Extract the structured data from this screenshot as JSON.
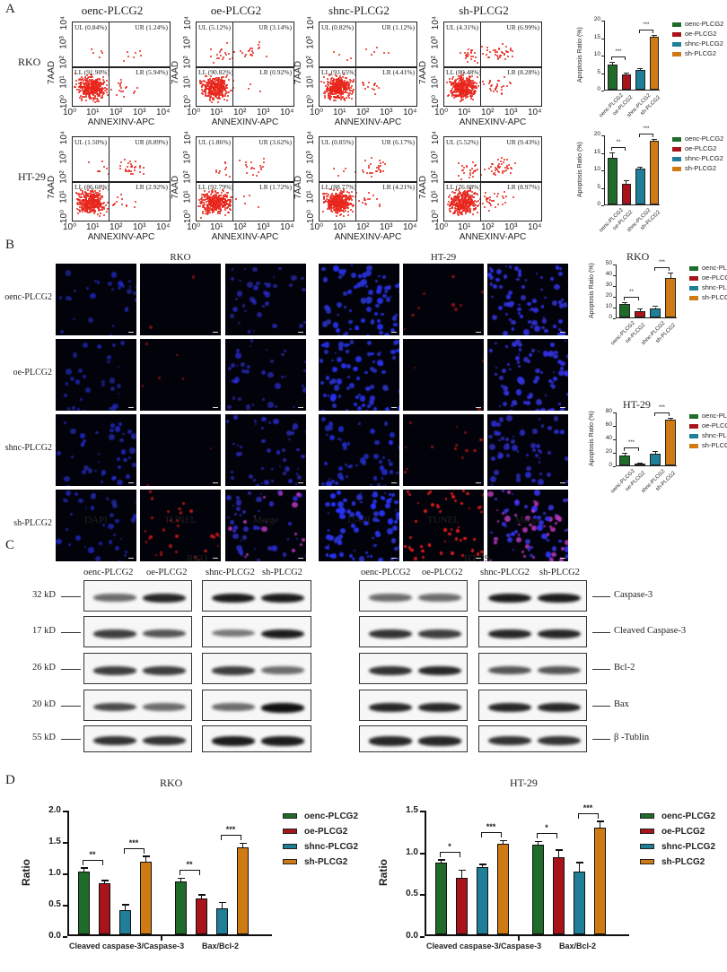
{
  "figure": {
    "panels": {
      "A": "A",
      "B": "B",
      "C": "C",
      "D": "D"
    },
    "colors": {
      "oenc": "#1f6b2a",
      "oe": "#a8141a",
      "shnc": "#1f7f99",
      "sh": "#d07a14",
      "flow_dot": "#e8261c",
      "dapi": "#1a22c8",
      "tunel": "#d01818"
    },
    "groups": [
      "oenc-PLCG2",
      "oe-PLCG2",
      "shnc-PLCG2",
      "sh-PLCG2"
    ],
    "cell_lines": [
      "RKO",
      "HT-29"
    ]
  },
  "panelA": {
    "row_labels": [
      "RKO",
      "HT-29"
    ],
    "x_axis_label": "ANNEXINV-APC",
    "y_axis_label": "7AAD",
    "axis_ticks": [
      "10⁰",
      "10¹",
      "10²",
      "10³",
      "10⁴"
    ],
    "plots": [
      [
        {
          "title": "oenc-PLCG2",
          "UL": "UL (0.84%)",
          "UR": "UR (1.24%)",
          "LL": "LL (91.98%)",
          "LR": "LR (5.94%)"
        },
        {
          "title": "oe-PLCG2",
          "UL": "UL (5.12%)",
          "UR": "UR (3.14%)",
          "LL": "LL (90.82%)",
          "LR": "LR (0.92%)"
        },
        {
          "title": "shnc-PLCG2",
          "UL": "UL (0.82%)",
          "UR": "UR (1.12%)",
          "LL": "LL (93.65%)",
          "LR": "LR (4.41%)"
        },
        {
          "title": "sh-PLCG2",
          "UL": "UL (4.31%)",
          "UR": "UR (6.99%)",
          "LL": "LL (80.48%)",
          "LR": "LR (8.28%)"
        }
      ],
      [
        {
          "title": "oenc-PLCG2",
          "UL": "UL (1.50%)",
          "UR": "UR (8.89%)",
          "LL": "LL (86.68%)",
          "LR": "LR (2.92%)"
        },
        {
          "title": "oe-PLCG2",
          "UL": "UL (1.86%)",
          "UR": "UR (3.62%)",
          "LL": "LL (92.79%)",
          "LR": "LR (1.72%)"
        },
        {
          "title": "shnc-PLCG2",
          "UL": "UL (0.85%)",
          "UR": "UR (6.17%)",
          "LL": "LL (88.77%)",
          "LR": "LR (4.21%)"
        },
        {
          "title": "sh-PLCG2",
          "UL": "UL (5.52%)",
          "UR": "UR (9.43%)",
          "LL": "LL (76.08%)",
          "LR": "LR (8.97%)"
        }
      ]
    ]
  },
  "panelB": {
    "cell_titles": [
      "RKO",
      "HT-29"
    ],
    "row_labels": [
      "oenc-PLCG2",
      "oe-PLCG2",
      "shnc-PLCG2",
      "sh-PLCG2"
    ],
    "column_labels": [
      "DAPI",
      "TUNEL",
      "Merge",
      "DAPI",
      "TUNEL",
      "Merge"
    ],
    "chart_titles": [
      "RKO",
      "HT-29"
    ]
  },
  "panelC": {
    "cell_titles": [
      "RKO",
      "HT-29"
    ],
    "lane_labels": [
      "oenc-PLCG2",
      "oe-PLCG2",
      "shnc-PLCG2",
      "sh-PLCG2"
    ],
    "kd_markers": [
      "32 kD",
      "17 kD",
      "26 kD",
      "20 kD",
      "55 kD"
    ],
    "proteins": [
      "Caspase-3",
      "Cleaved Caspase-3",
      "Bcl-2",
      "Bax",
      "β -Tublin"
    ]
  },
  "chart_data": [
    {
      "type": "bar",
      "title": "",
      "panel": "A",
      "cell_line": "RKO",
      "categories": [
        "oenc-PLCG2",
        "oe-PLCG2",
        "shnc-PLCG2",
        "sh-PLCG2"
      ],
      "values": [
        7.3,
        4.3,
        5.7,
        15.1
      ],
      "errors": [
        0.5,
        0.4,
        0.2,
        0.3
      ],
      "ylabel": "Apoptosis Ratio (%)",
      "ylim": [
        0,
        20
      ],
      "yticks": [
        0,
        5,
        10,
        15,
        20
      ],
      "significance": [
        {
          "between": [
            0,
            1
          ],
          "label": "***"
        },
        {
          "between": [
            2,
            3
          ],
          "label": "***"
        }
      ],
      "legend": [
        "oenc-PLCG2",
        "oe-PLCG2",
        "shnc-PLCG2",
        "sh-PLCG2"
      ],
      "legend_position": "right"
    },
    {
      "type": "bar",
      "title": "",
      "panel": "A",
      "cell_line": "HT-29",
      "categories": [
        "oenc-PLCG2",
        "oe-PLCG2",
        "shnc-PLCG2",
        "sh-PLCG2"
      ],
      "values": [
        13.3,
        5.9,
        10.3,
        18.1
      ],
      "errors": [
        1.3,
        0.7,
        0.1,
        0.4
      ],
      "ylabel": "Apoptosis Ratio (%)",
      "ylim": [
        0,
        20
      ],
      "yticks": [
        0,
        5,
        10,
        15,
        20
      ],
      "significance": [
        {
          "between": [
            0,
            1
          ],
          "label": "**"
        },
        {
          "between": [
            2,
            3
          ],
          "label": "***"
        }
      ],
      "legend": [
        "oenc-PLCG2",
        "oe-PLCG2",
        "shnc-PLCG2",
        "sh-PLCG2"
      ],
      "legend_position": "right"
    },
    {
      "type": "bar",
      "title": "RKO",
      "panel": "B",
      "categories": [
        "oenc-PLCG2",
        "oe-PLCG2",
        "shnc-PLCG2",
        "sh-PLCG2"
      ],
      "values": [
        12.2,
        6.0,
        8.6,
        37.0
      ],
      "errors": [
        1.4,
        1.3,
        1.0,
        3.5
      ],
      "ylabel": "Apoptosis Ratio (%)",
      "ylim": [
        0,
        50
      ],
      "yticks": [
        0,
        10,
        20,
        30,
        40,
        50
      ],
      "significance": [
        {
          "between": [
            0,
            1
          ],
          "label": "**"
        },
        {
          "between": [
            2,
            3
          ],
          "label": "***"
        }
      ],
      "legend": [
        "oenc-PLCG2",
        "oe-PLCG2",
        "shnc-PLCG2",
        "sh-PLCG2"
      ],
      "legend_position": "right"
    },
    {
      "type": "bar",
      "title": "HT-29",
      "panel": "B",
      "categories": [
        "oenc-PLCG2",
        "oe-PLCG2",
        "shnc-PLCG2",
        "sh-PLCG2"
      ],
      "values": [
        15.0,
        2.0,
        18.0,
        67.5
      ],
      "errors": [
        2.5,
        0.6,
        1.8,
        2.0
      ],
      "ylabel": "Apoptosis Ratio (%)",
      "ylim": [
        0,
        80
      ],
      "yticks": [
        0,
        20,
        40,
        60,
        80
      ],
      "significance": [
        {
          "between": [
            0,
            1
          ],
          "label": "***"
        },
        {
          "between": [
            2,
            3
          ],
          "label": "***"
        }
      ],
      "legend": [
        "oenc-PLCG2",
        "oe-PLCG2",
        "shnc-PLCG2",
        "sh-PLCG2"
      ],
      "legend_position": "right"
    },
    {
      "type": "bar",
      "title": "RKO",
      "panel": "D",
      "categories": [
        "Cleaved caspase-3/Caspase-3",
        "Bax/Bcl-2"
      ],
      "series": [
        {
          "name": "oenc-PLCG2",
          "values": [
            1.0,
            0.84
          ],
          "errors": [
            0.05,
            0.04
          ]
        },
        {
          "name": "oe-PLCG2",
          "values": [
            0.82,
            0.57
          ],
          "errors": [
            0.03,
            0.05
          ]
        },
        {
          "name": "shnc-PLCG2",
          "values": [
            0.39,
            0.42
          ],
          "errors": [
            0.07,
            0.08
          ]
        },
        {
          "name": "sh-PLCG2",
          "values": [
            1.16,
            1.39
          ],
          "errors": [
            0.07,
            0.05
          ]
        }
      ],
      "ylabel": "Ratio",
      "xlabel": "",
      "ylim": [
        0,
        2.0
      ],
      "yticks": [
        "0.0",
        "0.5",
        "1.0",
        "1.5",
        "2.0"
      ],
      "significance": [
        {
          "category": 0,
          "between": [
            0,
            1
          ],
          "label": "**"
        },
        {
          "category": 0,
          "between": [
            2,
            3
          ],
          "label": "***"
        },
        {
          "category": 1,
          "between": [
            0,
            1
          ],
          "label": "**"
        },
        {
          "category": 1,
          "between": [
            2,
            3
          ],
          "label": "***"
        }
      ],
      "legend_position": "right"
    },
    {
      "type": "bar",
      "title": "HT-29",
      "panel": "D",
      "categories": [
        "Cleaved caspase-3/Caspase-3",
        "Bax/Bcl-2"
      ],
      "series": [
        {
          "name": "oenc-PLCG2",
          "values": [
            0.86,
            1.07
          ],
          "errors": [
            0.02,
            0.03
          ]
        },
        {
          "name": "oe-PLCG2",
          "values": [
            0.68,
            0.92
          ],
          "errors": [
            0.08,
            0.08
          ]
        },
        {
          "name": "shnc-PLCG2",
          "values": [
            0.8,
            0.75
          ],
          "errors": [
            0.03,
            0.1
          ]
        },
        {
          "name": "sh-PLCG2",
          "values": [
            1.08,
            1.28
          ],
          "errors": [
            0.03,
            0.06
          ]
        }
      ],
      "ylabel": "Ratio",
      "xlabel": "",
      "ylim": [
        0,
        1.5
      ],
      "yticks": [
        "0.0",
        "0.5",
        "1.0",
        "1.5"
      ],
      "significance": [
        {
          "category": 0,
          "between": [
            0,
            1
          ],
          "label": "*"
        },
        {
          "category": 0,
          "between": [
            2,
            3
          ],
          "label": "***"
        },
        {
          "category": 1,
          "between": [
            0,
            1
          ],
          "label": "*"
        },
        {
          "category": 1,
          "between": [
            2,
            3
          ],
          "label": "***"
        }
      ],
      "legend_position": "right"
    }
  ]
}
